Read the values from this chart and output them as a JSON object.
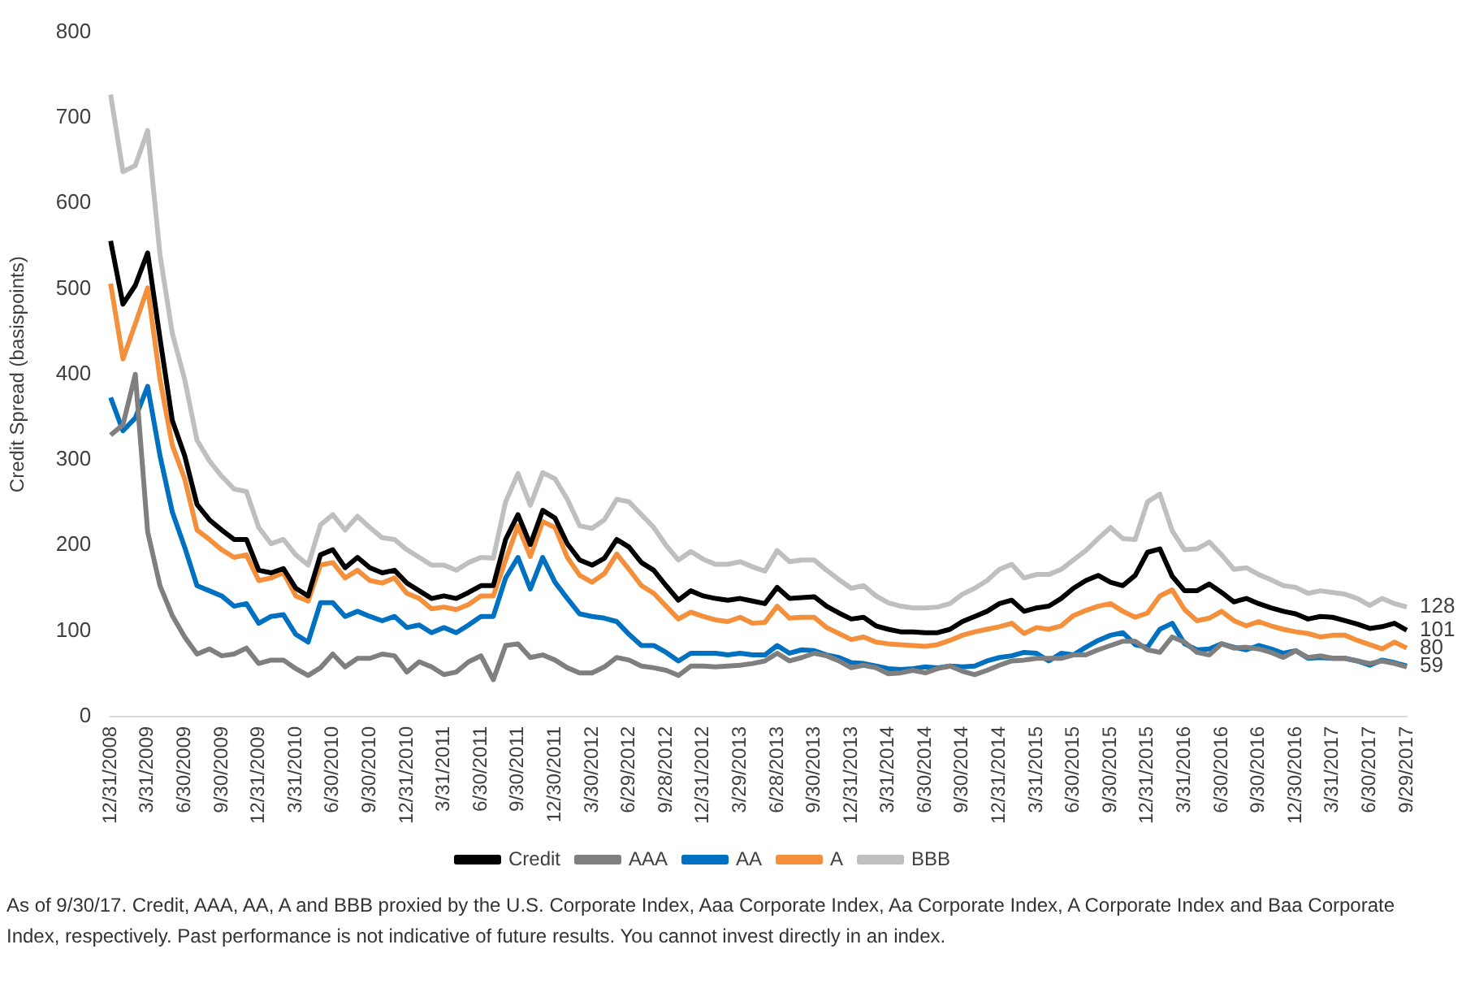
{
  "chart_data": {
    "type": "line",
    "ylabel": "Credit Spread (basispoints)",
    "ylim": [
      0,
      800
    ],
    "yticks": [
      0,
      100,
      200,
      300,
      400,
      500,
      600,
      700,
      800
    ],
    "grid": false,
    "legend": "bottom",
    "marker": "none",
    "line_style": "solid",
    "categories": [
      "12/31/2008",
      null,
      null,
      "3/31/2009",
      null,
      null,
      "6/30/2009",
      null,
      null,
      "9/30/2009",
      null,
      null,
      "12/31/2009",
      null,
      null,
      "3/31/2010",
      null,
      null,
      "6/30/2010",
      null,
      null,
      "9/30/2010",
      null,
      null,
      "12/31/2010",
      null,
      null,
      "3/31/2011",
      null,
      null,
      "6/30/2011",
      null,
      null,
      "9/30/2011",
      null,
      null,
      "12/30/2011",
      null,
      null,
      "3/30/2012",
      null,
      null,
      "6/29/2012",
      null,
      null,
      "9/28/2012",
      null,
      null,
      "12/31/2012",
      null,
      null,
      "3/29/2013",
      null,
      null,
      "6/28/2013",
      null,
      null,
      "9/30/2013",
      null,
      null,
      "12/31/2013",
      null,
      null,
      "3/31/2014",
      null,
      null,
      "6/30/2014",
      null,
      null,
      "9/30/2014",
      null,
      null,
      "12/31/2014",
      null,
      null,
      "3/31/2015",
      null,
      null,
      "6/30/2015",
      null,
      null,
      "9/30/2015",
      null,
      null,
      "12/31/2015",
      null,
      null,
      "3/31/2016",
      null,
      null,
      "6/30/2016",
      null,
      null,
      "9/30/2016",
      null,
      null,
      "12/30/2016",
      null,
      null,
      "3/31/2017",
      null,
      null,
      "6/30/2017",
      null,
      null,
      "9/29/2017"
    ],
    "series": [
      {
        "name": "Credit",
        "color": "#000000",
        "values": [
          556,
          482,
          504,
          542,
          442,
          346,
          305,
          248,
          230,
          218,
          207,
          207,
          171,
          168,
          173,
          150,
          141,
          189,
          195,
          174,
          186,
          174,
          168,
          171,
          156,
          147,
          138,
          141,
          138,
          145,
          153,
          153,
          207,
          236,
          201,
          241,
          232,
          202,
          183,
          177,
          185,
          207,
          198,
          180,
          171,
          153,
          136,
          147,
          141,
          138,
          136,
          138,
          135,
          132,
          151,
          138,
          139,
          140,
          129,
          121,
          114,
          116,
          106,
          102,
          99,
          99,
          98,
          98,
          102,
          111,
          117,
          123,
          132,
          136,
          123,
          127,
          129,
          138,
          150,
          159,
          165,
          157,
          153,
          165,
          192,
          196,
          164,
          147,
          147,
          155,
          145,
          134,
          138,
          132,
          127,
          123,
          120,
          114,
          117,
          116,
          112,
          108,
          103,
          105,
          109,
          101
        ]
      },
      {
        "name": "AAA",
        "color": "#7f7f7f",
        "values": [
          329,
          341,
          400,
          216,
          153,
          118,
          93,
          73,
          79,
          71,
          73,
          80,
          62,
          66,
          66,
          56,
          48,
          57,
          73,
          58,
          68,
          68,
          73,
          71,
          52,
          64,
          58,
          49,
          52,
          64,
          71,
          43,
          83,
          85,
          69,
          72,
          66,
          57,
          51,
          51,
          58,
          69,
          66,
          59,
          57,
          54,
          48,
          59,
          59,
          58,
          59,
          60,
          62,
          65,
          74,
          65,
          69,
          74,
          71,
          65,
          57,
          60,
          57,
          50,
          51,
          54,
          51,
          56,
          59,
          53,
          49,
          54,
          60,
          65,
          66,
          68,
          68,
          68,
          72,
          72,
          78,
          83,
          88,
          88,
          78,
          75,
          93,
          87,
          75,
          72,
          85,
          80,
          81,
          79,
          75,
          69,
          77,
          69,
          71,
          68,
          68,
          65,
          62,
          65,
          62,
          58
        ]
      },
      {
        "name": "AA",
        "color": "#0070c0",
        "values": [
          373,
          334,
          349,
          386,
          305,
          239,
          198,
          153,
          147,
          141,
          129,
          132,
          109,
          117,
          119,
          96,
          87,
          133,
          133,
          117,
          123,
          117,
          112,
          117,
          104,
          107,
          98,
          104,
          98,
          107,
          117,
          117,
          162,
          186,
          149,
          186,
          157,
          138,
          120,
          117,
          115,
          111,
          96,
          83,
          83,
          75,
          65,
          74,
          74,
          74,
          72,
          74,
          72,
          72,
          83,
          74,
          78,
          77,
          72,
          69,
          63,
          62,
          59,
          56,
          55,
          56,
          58,
          57,
          59,
          58,
          59,
          65,
          69,
          71,
          75,
          74,
          65,
          74,
          72,
          81,
          89,
          95,
          98,
          84,
          81,
          102,
          109,
          85,
          78,
          79,
          85,
          81,
          78,
          83,
          79,
          74,
          77,
          68,
          69,
          68,
          68,
          65,
          60,
          66,
          63,
          59
        ]
      },
      {
        "name": "A",
        "color": "#f4903c",
        "values": [
          506,
          418,
          459,
          501,
          394,
          317,
          278,
          218,
          207,
          195,
          186,
          189,
          159,
          162,
          168,
          141,
          135,
          177,
          180,
          162,
          171,
          159,
          156,
          162,
          144,
          138,
          126,
          128,
          125,
          131,
          141,
          141,
          183,
          223,
          187,
          228,
          221,
          186,
          165,
          157,
          167,
          190,
          172,
          153,
          144,
          129,
          114,
          122,
          117,
          113,
          111,
          116,
          109,
          110,
          129,
          115,
          116,
          116,
          104,
          97,
          90,
          93,
          87,
          85,
          84,
          83,
          82,
          84,
          89,
          95,
          99,
          102,
          105,
          109,
          97,
          104,
          102,
          106,
          118,
          124,
          129,
          132,
          123,
          116,
          121,
          141,
          148,
          125,
          112,
          115,
          123,
          112,
          106,
          111,
          106,
          102,
          99,
          97,
          93,
          95,
          95,
          89,
          84,
          79,
          87,
          80
        ]
      },
      {
        "name": "BBB",
        "color": "#bfbfbf",
        "values": [
          727,
          637,
          644,
          685,
          540,
          448,
          394,
          323,
          299,
          281,
          266,
          263,
          221,
          202,
          207,
          189,
          177,
          224,
          236,
          218,
          234,
          221,
          209,
          207,
          195,
          186,
          177,
          177,
          171,
          180,
          186,
          185,
          251,
          284,
          247,
          285,
          278,
          254,
          223,
          220,
          230,
          254,
          251,
          236,
          221,
          200,
          183,
          193,
          184,
          178,
          178,
          181,
          175,
          170,
          194,
          181,
          183,
          183,
          171,
          160,
          150,
          153,
          141,
          133,
          129,
          127,
          127,
          128,
          132,
          143,
          150,
          159,
          172,
          178,
          162,
          166,
          166,
          172,
          183,
          194,
          208,
          221,
          208,
          207,
          251,
          260,
          217,
          195,
          196,
          204,
          189,
          172,
          174,
          166,
          160,
          153,
          151,
          144,
          147,
          145,
          143,
          138,
          130,
          138,
          132,
          128
        ]
      }
    ],
    "annotations": [
      {
        "text": "128",
        "x": "9/29/2017",
        "y": 128
      },
      {
        "text": "101",
        "x": "9/29/2017",
        "y": 101
      },
      {
        "text": "80",
        "x": "9/29/2017",
        "y": 80
      },
      {
        "text": "59",
        "x": "9/29/2017",
        "y": 59
      },
      "As of 9/30/17. Credit, AAA, AA, A and BBB proxied by the U.S. Corporate Index, Aaa Corporate Index, Aa Corporate Index, A Corporate Index and Baa Corporate Index, respectively. Past performance is not indicative of future results. You cannot invest directly in an index."
    ]
  }
}
